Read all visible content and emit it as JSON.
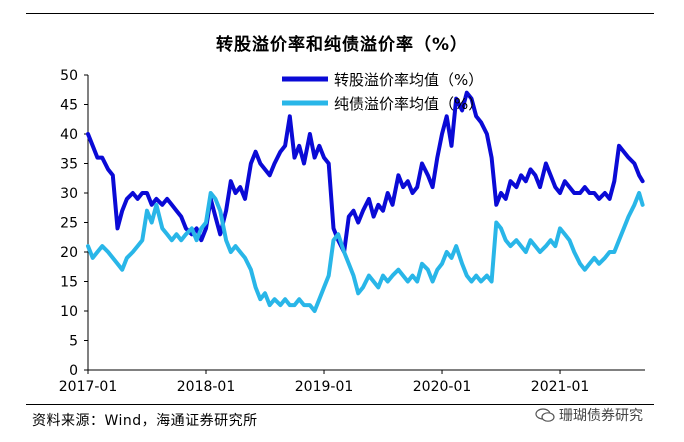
{
  "chart_data": {
    "type": "line",
    "title": "转股溢价率和纯债溢价率（%）",
    "xlabel": "",
    "ylabel": "",
    "ylim": [
      0,
      50
    ],
    "yticks": [
      0,
      5,
      10,
      15,
      20,
      25,
      30,
      35,
      40,
      45,
      50
    ],
    "xlim": [
      2017.0,
      2021.72
    ],
    "xticks": [
      {
        "value": 2017.0,
        "label": "2017-01"
      },
      {
        "value": 2018.0,
        "label": "2018-01"
      },
      {
        "value": 2019.0,
        "label": "2019-01"
      },
      {
        "value": 2020.0,
        "label": "2020-01"
      },
      {
        "value": 2021.0,
        "label": "2021-01"
      }
    ],
    "legend_position": "top-center",
    "series": [
      {
        "name": "转股溢价率均值（%）",
        "color": "#0a0ad6",
        "points": [
          [
            2017.0,
            40
          ],
          [
            2017.04,
            38
          ],
          [
            2017.08,
            36
          ],
          [
            2017.12,
            36
          ],
          [
            2017.17,
            34
          ],
          [
            2017.21,
            33
          ],
          [
            2017.25,
            24
          ],
          [
            2017.29,
            27
          ],
          [
            2017.33,
            29
          ],
          [
            2017.38,
            30
          ],
          [
            2017.42,
            29
          ],
          [
            2017.46,
            30
          ],
          [
            2017.5,
            30
          ],
          [
            2017.54,
            28
          ],
          [
            2017.58,
            29
          ],
          [
            2017.63,
            28
          ],
          [
            2017.67,
            29
          ],
          [
            2017.71,
            28
          ],
          [
            2017.75,
            27
          ],
          [
            2017.79,
            26
          ],
          [
            2017.83,
            24
          ],
          [
            2017.88,
            23
          ],
          [
            2017.92,
            24
          ],
          [
            2017.96,
            22
          ],
          [
            2018.0,
            24
          ],
          [
            2018.04,
            29
          ],
          [
            2018.08,
            26
          ],
          [
            2018.12,
            23
          ],
          [
            2018.17,
            27
          ],
          [
            2018.21,
            32
          ],
          [
            2018.25,
            30
          ],
          [
            2018.29,
            31
          ],
          [
            2018.33,
            29
          ],
          [
            2018.38,
            35
          ],
          [
            2018.42,
            37
          ],
          [
            2018.46,
            35
          ],
          [
            2018.5,
            34
          ],
          [
            2018.54,
            33
          ],
          [
            2018.58,
            35
          ],
          [
            2018.63,
            37
          ],
          [
            2018.67,
            38
          ],
          [
            2018.71,
            43
          ],
          [
            2018.75,
            36
          ],
          [
            2018.79,
            38
          ],
          [
            2018.83,
            35
          ],
          [
            2018.88,
            40
          ],
          [
            2018.92,
            36
          ],
          [
            2018.96,
            38
          ],
          [
            2019.0,
            36
          ],
          [
            2019.04,
            35
          ],
          [
            2019.08,
            24
          ],
          [
            2019.12,
            22
          ],
          [
            2019.17,
            20
          ],
          [
            2019.21,
            26
          ],
          [
            2019.25,
            27
          ],
          [
            2019.29,
            25
          ],
          [
            2019.33,
            27
          ],
          [
            2019.38,
            29
          ],
          [
            2019.42,
            26
          ],
          [
            2019.46,
            28
          ],
          [
            2019.5,
            27
          ],
          [
            2019.54,
            30
          ],
          [
            2019.58,
            28
          ],
          [
            2019.63,
            33
          ],
          [
            2019.67,
            31
          ],
          [
            2019.71,
            32
          ],
          [
            2019.75,
            30
          ],
          [
            2019.79,
            31
          ],
          [
            2019.83,
            35
          ],
          [
            2019.88,
            33
          ],
          [
            2019.92,
            31
          ],
          [
            2019.96,
            36
          ],
          [
            2020.0,
            40
          ],
          [
            2020.04,
            43
          ],
          [
            2020.08,
            38
          ],
          [
            2020.12,
            46
          ],
          [
            2020.17,
            44
          ],
          [
            2020.21,
            47
          ],
          [
            2020.25,
            46
          ],
          [
            2020.29,
            43
          ],
          [
            2020.33,
            42
          ],
          [
            2020.38,
            40
          ],
          [
            2020.42,
            36
          ],
          [
            2020.46,
            28
          ],
          [
            2020.5,
            30
          ],
          [
            2020.54,
            29
          ],
          [
            2020.58,
            32
          ],
          [
            2020.63,
            31
          ],
          [
            2020.67,
            33
          ],
          [
            2020.71,
            32
          ],
          [
            2020.75,
            34
          ],
          [
            2020.79,
            33
          ],
          [
            2020.83,
            31
          ],
          [
            2020.88,
            35
          ],
          [
            2020.92,
            33
          ],
          [
            2020.96,
            31
          ],
          [
            2021.0,
            30
          ],
          [
            2021.04,
            32
          ],
          [
            2021.08,
            31
          ],
          [
            2021.12,
            30
          ],
          [
            2021.17,
            30
          ],
          [
            2021.21,
            31
          ],
          [
            2021.25,
            30
          ],
          [
            2021.29,
            30
          ],
          [
            2021.33,
            29
          ],
          [
            2021.38,
            30
          ],
          [
            2021.42,
            29
          ],
          [
            2021.46,
            32
          ],
          [
            2021.5,
            38
          ],
          [
            2021.54,
            37
          ],
          [
            2021.58,
            36
          ],
          [
            2021.63,
            35
          ],
          [
            2021.67,
            33
          ],
          [
            2021.7,
            32
          ]
        ]
      },
      {
        "name": "纯债溢价率均值（%）",
        "color": "#29b6e8",
        "points": [
          [
            2017.0,
            21
          ],
          [
            2017.04,
            19
          ],
          [
            2017.08,
            20
          ],
          [
            2017.12,
            21
          ],
          [
            2017.17,
            20
          ],
          [
            2017.21,
            19
          ],
          [
            2017.25,
            18
          ],
          [
            2017.29,
            17
          ],
          [
            2017.33,
            19
          ],
          [
            2017.38,
            20
          ],
          [
            2017.42,
            21
          ],
          [
            2017.46,
            22
          ],
          [
            2017.5,
            27
          ],
          [
            2017.54,
            25
          ],
          [
            2017.58,
            28
          ],
          [
            2017.63,
            24
          ],
          [
            2017.67,
            23
          ],
          [
            2017.71,
            22
          ],
          [
            2017.75,
            23
          ],
          [
            2017.79,
            22
          ],
          [
            2017.83,
            23
          ],
          [
            2017.88,
            24
          ],
          [
            2017.92,
            22
          ],
          [
            2017.96,
            24
          ],
          [
            2018.0,
            25
          ],
          [
            2018.04,
            30
          ],
          [
            2018.08,
            29
          ],
          [
            2018.12,
            27
          ],
          [
            2018.17,
            22
          ],
          [
            2018.21,
            20
          ],
          [
            2018.25,
            21
          ],
          [
            2018.29,
            20
          ],
          [
            2018.33,
            19
          ],
          [
            2018.38,
            17
          ],
          [
            2018.42,
            14
          ],
          [
            2018.46,
            12
          ],
          [
            2018.5,
            13
          ],
          [
            2018.54,
            11
          ],
          [
            2018.58,
            12
          ],
          [
            2018.63,
            11
          ],
          [
            2018.67,
            12
          ],
          [
            2018.71,
            11
          ],
          [
            2018.75,
            11
          ],
          [
            2018.79,
            12
          ],
          [
            2018.83,
            11
          ],
          [
            2018.88,
            11
          ],
          [
            2018.92,
            10
          ],
          [
            2018.96,
            12
          ],
          [
            2019.0,
            14
          ],
          [
            2019.04,
            16
          ],
          [
            2019.08,
            22
          ],
          [
            2019.12,
            23
          ],
          [
            2019.17,
            20
          ],
          [
            2019.21,
            18
          ],
          [
            2019.25,
            16
          ],
          [
            2019.29,
            13
          ],
          [
            2019.33,
            14
          ],
          [
            2019.38,
            16
          ],
          [
            2019.42,
            15
          ],
          [
            2019.46,
            14
          ],
          [
            2019.5,
            16
          ],
          [
            2019.54,
            15
          ],
          [
            2019.58,
            16
          ],
          [
            2019.63,
            17
          ],
          [
            2019.67,
            16
          ],
          [
            2019.71,
            15
          ],
          [
            2019.75,
            16
          ],
          [
            2019.79,
            15
          ],
          [
            2019.83,
            18
          ],
          [
            2019.88,
            17
          ],
          [
            2019.92,
            15
          ],
          [
            2019.96,
            17
          ],
          [
            2020.0,
            18
          ],
          [
            2020.04,
            20
          ],
          [
            2020.08,
            19
          ],
          [
            2020.12,
            21
          ],
          [
            2020.17,
            18
          ],
          [
            2020.21,
            16
          ],
          [
            2020.25,
            15
          ],
          [
            2020.29,
            16
          ],
          [
            2020.33,
            15
          ],
          [
            2020.38,
            16
          ],
          [
            2020.42,
            15
          ],
          [
            2020.46,
            25
          ],
          [
            2020.5,
            24
          ],
          [
            2020.54,
            22
          ],
          [
            2020.58,
            21
          ],
          [
            2020.63,
            22
          ],
          [
            2020.67,
            21
          ],
          [
            2020.71,
            20
          ],
          [
            2020.75,
            22
          ],
          [
            2020.79,
            21
          ],
          [
            2020.83,
            20
          ],
          [
            2020.88,
            21
          ],
          [
            2020.92,
            22
          ],
          [
            2020.96,
            21
          ],
          [
            2021.0,
            24
          ],
          [
            2021.04,
            23
          ],
          [
            2021.08,
            22
          ],
          [
            2021.12,
            20
          ],
          [
            2021.17,
            18
          ],
          [
            2021.21,
            17
          ],
          [
            2021.25,
            18
          ],
          [
            2021.29,
            19
          ],
          [
            2021.33,
            18
          ],
          [
            2021.38,
            19
          ],
          [
            2021.42,
            20
          ],
          [
            2021.46,
            20
          ],
          [
            2021.5,
            22
          ],
          [
            2021.54,
            24
          ],
          [
            2021.58,
            26
          ],
          [
            2021.63,
            28
          ],
          [
            2021.67,
            30
          ],
          [
            2021.7,
            28
          ]
        ]
      }
    ]
  },
  "source": "资料来源：Wind，海通证券研究所",
  "watermark": "珊瑚债券研究"
}
